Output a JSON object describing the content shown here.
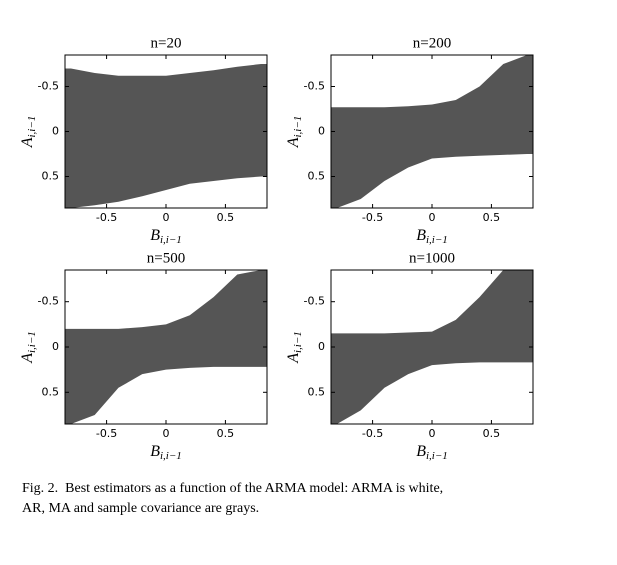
{
  "chart_data": [
    {
      "type": "region",
      "title": "n=20",
      "x_label": "B",
      "x_label_sub": "i,i−1",
      "y_label": "A",
      "y_label_sub": "i,i−1",
      "x": [
        -0.8,
        -0.6,
        -0.4,
        -0.2,
        0,
        0.2,
        0.4,
        0.6,
        0.8
      ],
      "top": [
        -0.7,
        -0.65,
        -0.62,
        -0.62,
        -0.62,
        -0.65,
        -0.68,
        -0.72,
        -0.75
      ],
      "bottom": [
        0.85,
        0.82,
        0.78,
        0.72,
        0.65,
        0.58,
        0.55,
        0.52,
        0.5
      ],
      "color": "#555555",
      "xlim": [
        -0.85,
        0.85
      ],
      "ylim": [
        -0.85,
        0.85
      ],
      "y_reversed": true,
      "xticks": [
        -0.5,
        0,
        0.5
      ],
      "yticks": [
        -0.5,
        0,
        0.5
      ]
    },
    {
      "type": "region",
      "title": "n=200",
      "x_label": "B",
      "x_label_sub": "i,i−1",
      "y_label": "A",
      "y_label_sub": "i,i−1",
      "x": [
        -0.8,
        -0.6,
        -0.4,
        -0.2,
        0,
        0.2,
        0.4,
        0.6,
        0.8
      ],
      "top": [
        -0.27,
        -0.27,
        -0.27,
        -0.28,
        -0.3,
        -0.35,
        -0.5,
        -0.75,
        -0.85
      ],
      "bottom": [
        0.85,
        0.75,
        0.55,
        0.4,
        0.3,
        0.28,
        0.27,
        0.26,
        0.25
      ],
      "color": "#555555",
      "xlim": [
        -0.85,
        0.85
      ],
      "ylim": [
        -0.85,
        0.85
      ],
      "y_reversed": true,
      "xticks": [
        -0.5,
        0,
        0.5
      ],
      "yticks": [
        -0.5,
        0,
        0.5
      ]
    },
    {
      "type": "region",
      "title": "n=500",
      "x_label": "B",
      "x_label_sub": "i,i−1",
      "y_label": "A",
      "y_label_sub": "i,i−1",
      "x": [
        -0.8,
        -0.6,
        -0.4,
        -0.2,
        0,
        0.2,
        0.4,
        0.6,
        0.8
      ],
      "top": [
        -0.2,
        -0.2,
        -0.2,
        -0.22,
        -0.25,
        -0.35,
        -0.55,
        -0.8,
        -0.85
      ],
      "bottom": [
        0.85,
        0.75,
        0.45,
        0.3,
        0.25,
        0.23,
        0.22,
        0.22,
        0.22
      ],
      "color": "#555555",
      "xlim": [
        -0.85,
        0.85
      ],
      "ylim": [
        -0.85,
        0.85
      ],
      "y_reversed": true,
      "xticks": [
        -0.5,
        0,
        0.5
      ],
      "yticks": [
        -0.5,
        0,
        0.5
      ]
    },
    {
      "type": "region",
      "title": "n=1000",
      "x_label": "B",
      "x_label_sub": "i,i−1",
      "y_label": "A",
      "y_label_sub": "i,i−1",
      "x": [
        -0.8,
        -0.6,
        -0.4,
        -0.2,
        0,
        0.2,
        0.4,
        0.6,
        0.8
      ],
      "top": [
        -0.15,
        -0.15,
        -0.15,
        -0.16,
        -0.17,
        -0.3,
        -0.55,
        -0.85,
        -0.85
      ],
      "bottom": [
        0.85,
        0.7,
        0.45,
        0.3,
        0.2,
        0.18,
        0.17,
        0.17,
        0.17
      ],
      "color": "#555555",
      "xlim": [
        -0.85,
        0.85
      ],
      "ylim": [
        -0.85,
        0.85
      ],
      "y_reversed": true,
      "xticks": [
        -0.5,
        0,
        0.5
      ],
      "yticks": [
        -0.5,
        0,
        0.5
      ]
    }
  ],
  "caption": {
    "line1": "Fig. 2.  Best estimators as a function of the ARMA model: ARMA is white,",
    "line2": "AR, MA and sample covariance are grays."
  }
}
